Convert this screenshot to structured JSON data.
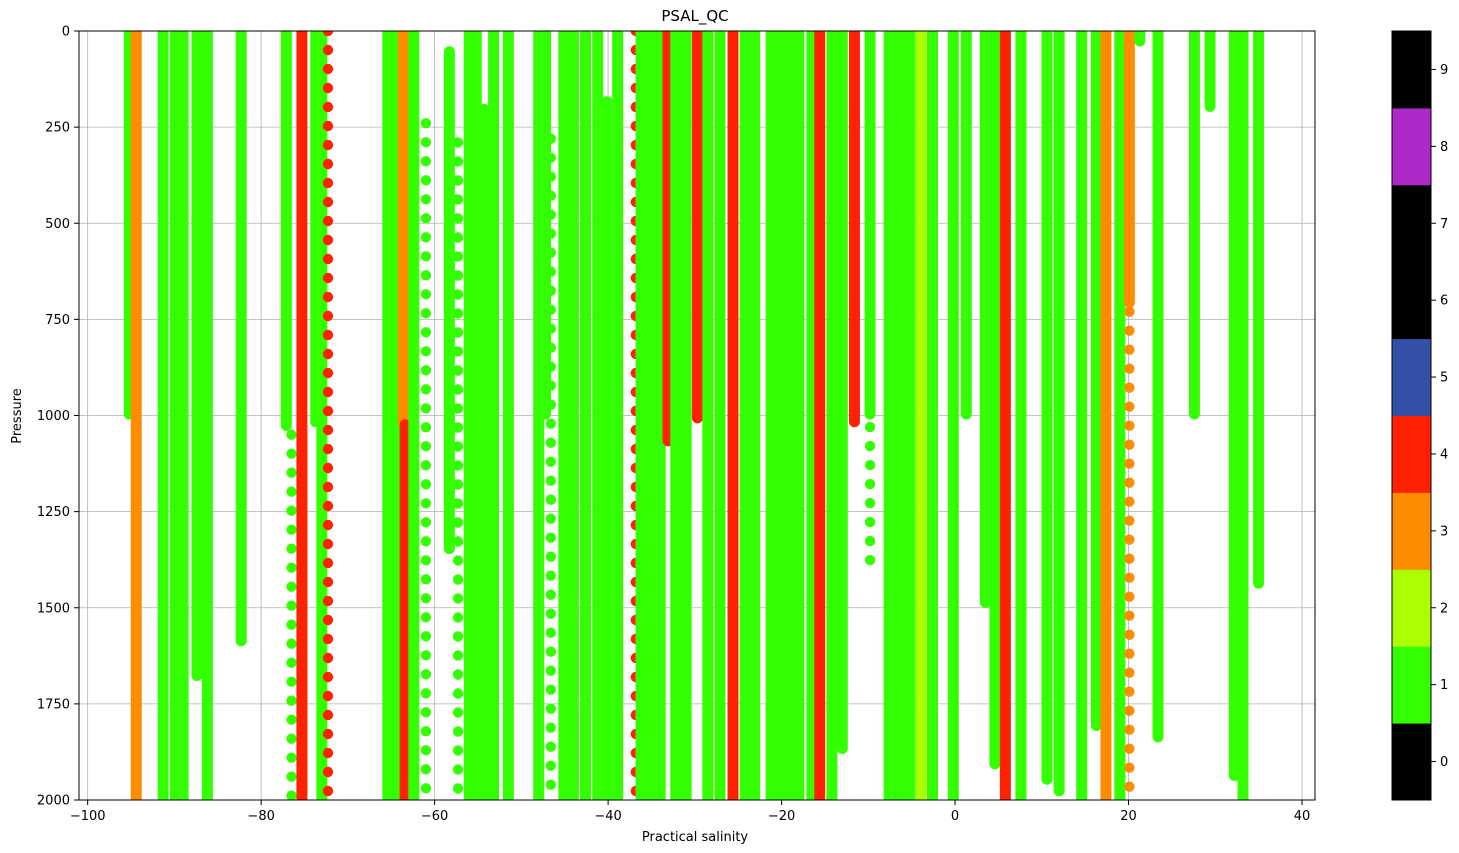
{
  "chart_data": {
    "type": "scatter",
    "title": "PSAL_QC",
    "xlabel": "Practical salinity",
    "ylabel": "Pressure",
    "xlim": [
      -101,
      41.5
    ],
    "ylim": [
      2000,
      0
    ],
    "y_inverted": true,
    "grid": true,
    "xticks": [
      -100,
      -80,
      -60,
      -40,
      -20,
      0,
      20,
      40
    ],
    "xtick_labels": [
      "−100",
      "−80",
      "−60",
      "−40",
      "−20",
      "0",
      "20",
      "40"
    ],
    "yticks": [
      0,
      250,
      500,
      750,
      1000,
      1250,
      1500,
      1750,
      2000
    ],
    "ytick_labels": [
      "0",
      "250",
      "500",
      "750",
      "1000",
      "1250",
      "1500",
      "1750",
      "2000"
    ],
    "colorbar": {
      "ticks": [
        0,
        1,
        2,
        3,
        4,
        5,
        6,
        7,
        8,
        9
      ],
      "tick_labels": [
        "0",
        "1",
        "2",
        "3",
        "4",
        "5",
        "6",
        "7",
        "8",
        "9"
      ],
      "colors": [
        "#000000",
        "#33ff00",
        "#aaff00",
        "#ff8c00",
        "#ff2200",
        "#334fa8",
        "#000000",
        "#000000",
        "#ae2ac8",
        "#000000"
      ]
    },
    "profiles": [
      {
        "x": -95.2,
        "p0": 0,
        "p1": 1000,
        "qc": 1,
        "style": "solid"
      },
      {
        "x": -94.4,
        "p0": 0,
        "p1": 2000,
        "qc": 3,
        "style": "solid"
      },
      {
        "x": -91.3,
        "p0": 0,
        "p1": 2000,
        "qc": 1,
        "style": "solid"
      },
      {
        "x": -89.9,
        "p0": 0,
        "p1": 2000,
        "qc": 1,
        "style": "solid"
      },
      {
        "x": -89.0,
        "p0": 0,
        "p1": 2000,
        "qc": 1,
        "style": "solid"
      },
      {
        "x": -87.4,
        "p0": 0,
        "p1": 1680,
        "qc": 1,
        "style": "solid"
      },
      {
        "x": -86.2,
        "p0": 0,
        "p1": 2000,
        "qc": 1,
        "style": "solid"
      },
      {
        "x": -82.3,
        "p0": 0,
        "p1": 1590,
        "qc": 1,
        "style": "solid"
      },
      {
        "x": -77.1,
        "p0": 0,
        "p1": 1030,
        "qc": 1,
        "style": "solid"
      },
      {
        "x": -76.5,
        "p0": 1050,
        "p1": 2000,
        "qc": 1,
        "style": "dotted"
      },
      {
        "x": -75.3,
        "p0": 0,
        "p1": 2000,
        "qc": 4,
        "style": "solid"
      },
      {
        "x": -73.7,
        "p0": 0,
        "p1": 1020,
        "qc": 1,
        "style": "solid"
      },
      {
        "x": -73.0,
        "p0": 0,
        "p1": 2000,
        "qc": 1,
        "style": "solid"
      },
      {
        "x": -72.3,
        "p0": 0,
        "p1": 2000,
        "qc": 4,
        "style": "dotted"
      },
      {
        "x": -65.4,
        "p0": 0,
        "p1": 2000,
        "qc": 1,
        "style": "solid"
      },
      {
        "x": -64.2,
        "p0": 0,
        "p1": 2000,
        "qc": 1,
        "style": "solid"
      },
      {
        "x": -63.6,
        "p0": 0,
        "p1": 1020,
        "qc": 3,
        "style": "solid"
      },
      {
        "x": -63.4,
        "p0": 1020,
        "p1": 2000,
        "qc": 4,
        "style": "solid"
      },
      {
        "x": -62.4,
        "p0": 0,
        "p1": 2000,
        "qc": 1,
        "style": "solid"
      },
      {
        "x": -61.0,
        "p0": 240,
        "p1": 2000,
        "qc": 1,
        "style": "dotted"
      },
      {
        "x": -58.3,
        "p0": 50,
        "p1": 1350,
        "qc": 1,
        "style": "solid"
      },
      {
        "x": -57.3,
        "p0": 290,
        "p1": 2000,
        "qc": 1,
        "style": "dotted"
      },
      {
        "x": -56.0,
        "p0": 0,
        "p1": 2000,
        "qc": 1,
        "style": "solid"
      },
      {
        "x": -55.2,
        "p0": 0,
        "p1": 2000,
        "qc": 1,
        "style": "solid"
      },
      {
        "x": -54.3,
        "p0": 200,
        "p1": 2000,
        "qc": 1,
        "style": "solid"
      },
      {
        "x": -53.2,
        "p0": 0,
        "p1": 2000,
        "qc": 1,
        "style": "solid"
      },
      {
        "x": -51.5,
        "p0": 0,
        "p1": 2000,
        "qc": 1,
        "style": "solid"
      },
      {
        "x": -48.0,
        "p0": 0,
        "p1": 2000,
        "qc": 1,
        "style": "solid"
      },
      {
        "x": -47.2,
        "p0": 0,
        "p1": 1000,
        "qc": 1,
        "style": "solid"
      },
      {
        "x": -46.6,
        "p0": 280,
        "p1": 2000,
        "qc": 1,
        "style": "dotted"
      },
      {
        "x": -45.1,
        "p0": 0,
        "p1": 2000,
        "qc": 1,
        "style": "solid"
      },
      {
        "x": -44.0,
        "p0": 0,
        "p1": 2000,
        "qc": 1,
        "style": "solid"
      },
      {
        "x": -42.6,
        "p0": 0,
        "p1": 2000,
        "qc": 1,
        "style": "solid"
      },
      {
        "x": -41.2,
        "p0": 0,
        "p1": 2000,
        "qc": 1,
        "style": "solid"
      },
      {
        "x": -40.1,
        "p0": 180,
        "p1": 2000,
        "qc": 1,
        "style": "solid"
      },
      {
        "x": -38.9,
        "p0": 0,
        "p1": 2000,
        "qc": 1,
        "style": "solid"
      },
      {
        "x": -36.8,
        "p0": 0,
        "p1": 2000,
        "qc": 4,
        "style": "dotted"
      },
      {
        "x": -36.2,
        "p0": 0,
        "p1": 2000,
        "qc": 1,
        "style": "solid"
      },
      {
        "x": -35.0,
        "p0": 0,
        "p1": 2000,
        "qc": 1,
        "style": "solid"
      },
      {
        "x": -34.0,
        "p0": 0,
        "p1": 2000,
        "qc": 1,
        "style": "solid"
      },
      {
        "x": -33.1,
        "p0": 0,
        "p1": 1070,
        "qc": 4,
        "style": "solid"
      },
      {
        "x": -32.2,
        "p0": 0,
        "p1": 2000,
        "qc": 1,
        "style": "solid"
      },
      {
        "x": -31.0,
        "p0": 0,
        "p1": 2000,
        "qc": 1,
        "style": "solid"
      },
      {
        "x": -29.7,
        "p0": 0,
        "p1": 1010,
        "qc": 4,
        "style": "solid"
      },
      {
        "x": -28.5,
        "p0": 0,
        "p1": 2000,
        "qc": 1,
        "style": "solid"
      },
      {
        "x": -27.1,
        "p0": 0,
        "p1": 2000,
        "qc": 1,
        "style": "solid"
      },
      {
        "x": -25.6,
        "p0": 0,
        "p1": 2000,
        "qc": 4,
        "style": "solid"
      },
      {
        "x": -24.2,
        "p0": 0,
        "p1": 2000,
        "qc": 1,
        "style": "solid"
      },
      {
        "x": -23.1,
        "p0": 0,
        "p1": 2000,
        "qc": 1,
        "style": "solid"
      },
      {
        "x": -21.2,
        "p0": 0,
        "p1": 2000,
        "qc": 1,
        "style": "solid"
      },
      {
        "x": -20.2,
        "p0": 0,
        "p1": 2000,
        "qc": 1,
        "style": "solid"
      },
      {
        "x": -19.2,
        "p0": 0,
        "p1": 2000,
        "qc": 1,
        "style": "solid"
      },
      {
        "x": -18.0,
        "p0": 0,
        "p1": 2000,
        "qc": 1,
        "style": "solid"
      },
      {
        "x": -16.5,
        "p0": 0,
        "p1": 2000,
        "qc": 1,
        "style": "solid"
      },
      {
        "x": -15.6,
        "p0": 0,
        "p1": 2000,
        "qc": 4,
        "style": "solid"
      },
      {
        "x": -14.2,
        "p0": 0,
        "p1": 2000,
        "qc": 1,
        "style": "solid"
      },
      {
        "x": -13.0,
        "p0": 0,
        "p1": 1870,
        "qc": 1,
        "style": "solid"
      },
      {
        "x": -11.6,
        "p0": 0,
        "p1": 1020,
        "qc": 4,
        "style": "solid"
      },
      {
        "x": -9.8,
        "p0": 0,
        "p1": 1000,
        "qc": 1,
        "style": "solid"
      },
      {
        "x": -9.8,
        "p0": 1030,
        "p1": 1390,
        "qc": 1,
        "style": "dotted"
      },
      {
        "x": -7.6,
        "p0": 0,
        "p1": 2000,
        "qc": 1,
        "style": "solid"
      },
      {
        "x": -6.4,
        "p0": 0,
        "p1": 2000,
        "qc": 1,
        "style": "solid"
      },
      {
        "x": -5.2,
        "p0": 0,
        "p1": 2000,
        "qc": 1,
        "style": "solid"
      },
      {
        "x": -3.9,
        "p0": 0,
        "p1": 2000,
        "qc": 2,
        "style": "solid"
      },
      {
        "x": -2.6,
        "p0": 0,
        "p1": 2000,
        "qc": 1,
        "style": "solid"
      },
      {
        "x": -0.2,
        "p0": 0,
        "p1": 2000,
        "qc": 1,
        "style": "solid"
      },
      {
        "x": 1.3,
        "p0": 0,
        "p1": 1000,
        "qc": 1,
        "style": "solid"
      },
      {
        "x": 3.5,
        "p0": 0,
        "p1": 1490,
        "qc": 1,
        "style": "solid"
      },
      {
        "x": 4.6,
        "p0": 0,
        "p1": 1910,
        "qc": 1,
        "style": "solid"
      },
      {
        "x": 5.8,
        "p0": 0,
        "p1": 2000,
        "qc": 4,
        "style": "solid"
      },
      {
        "x": 7.6,
        "p0": 0,
        "p1": 2000,
        "qc": 1,
        "style": "solid"
      },
      {
        "x": 10.6,
        "p0": 0,
        "p1": 1950,
        "qc": 1,
        "style": "solid"
      },
      {
        "x": 12.0,
        "p0": 0,
        "p1": 1980,
        "qc": 1,
        "style": "solid"
      },
      {
        "x": 14.6,
        "p0": 0,
        "p1": 2000,
        "qc": 1,
        "style": "solid"
      },
      {
        "x": 16.3,
        "p0": 0,
        "p1": 1810,
        "qc": 1,
        "style": "solid"
      },
      {
        "x": 17.4,
        "p0": 0,
        "p1": 2000,
        "qc": 3,
        "style": "solid"
      },
      {
        "x": 19.0,
        "p0": 0,
        "p1": 2000,
        "qc": 1,
        "style": "solid"
      },
      {
        "x": 20.1,
        "p0": 0,
        "p1": 710,
        "qc": 3,
        "style": "solid"
      },
      {
        "x": 20.1,
        "p0": 730,
        "p1": 2000,
        "qc": 3,
        "style": "dotted"
      },
      {
        "x": 21.3,
        "p0": 0,
        "p1": 30,
        "qc": 1,
        "style": "solid"
      },
      {
        "x": 23.4,
        "p0": 0,
        "p1": 1840,
        "qc": 1,
        "style": "solid"
      },
      {
        "x": 27.6,
        "p0": 0,
        "p1": 1000,
        "qc": 1,
        "style": "solid"
      },
      {
        "x": 29.4,
        "p0": 0,
        "p1": 200,
        "qc": 1,
        "style": "solid"
      },
      {
        "x": 32.2,
        "p0": 0,
        "p1": 1940,
        "qc": 1,
        "style": "solid"
      },
      {
        "x": 33.2,
        "p0": 0,
        "p1": 2000,
        "qc": 1,
        "style": "solid"
      },
      {
        "x": 35.0,
        "p0": 0,
        "p1": 1440,
        "qc": 1,
        "style": "solid"
      }
    ]
  }
}
